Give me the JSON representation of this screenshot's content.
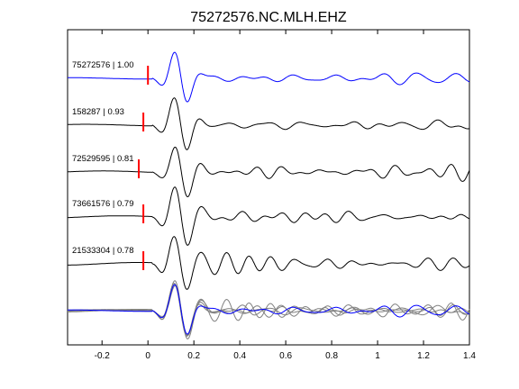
{
  "chart_data": {
    "type": "line",
    "title": "75272576.NC.MLH.EHZ",
    "xlabel": "",
    "ylabel": "",
    "xlim": [
      -0.35,
      1.4
    ],
    "xticks": [
      -0.2,
      0,
      0.2,
      0.4,
      0.6,
      0.8,
      1,
      1.2,
      1.4
    ],
    "xtick_labels": [
      "-0.2",
      "0",
      "0.2",
      "0.4",
      "0.6",
      "0.8",
      "1",
      "1.2",
      "1.4"
    ],
    "grid": false,
    "traces": [
      {
        "label": "75272576 | 1.00",
        "pick_time": 0.0,
        "color": "#0000ff"
      },
      {
        "label": "158287 | 0.93",
        "pick_time": -0.02,
        "color": "#000000"
      },
      {
        "label": "72529595 | 0.81",
        "pick_time": -0.04,
        "color": "#000000"
      },
      {
        "label": "73661576 | 0.79",
        "pick_time": -0.02,
        "color": "#000000"
      },
      {
        "label": "21533304 | 0.78",
        "pick_time": -0.02,
        "color": "#000000"
      }
    ],
    "overlay": {
      "colors": [
        "#0000ff",
        "#808080"
      ]
    },
    "pick_color": "#ff0000"
  }
}
